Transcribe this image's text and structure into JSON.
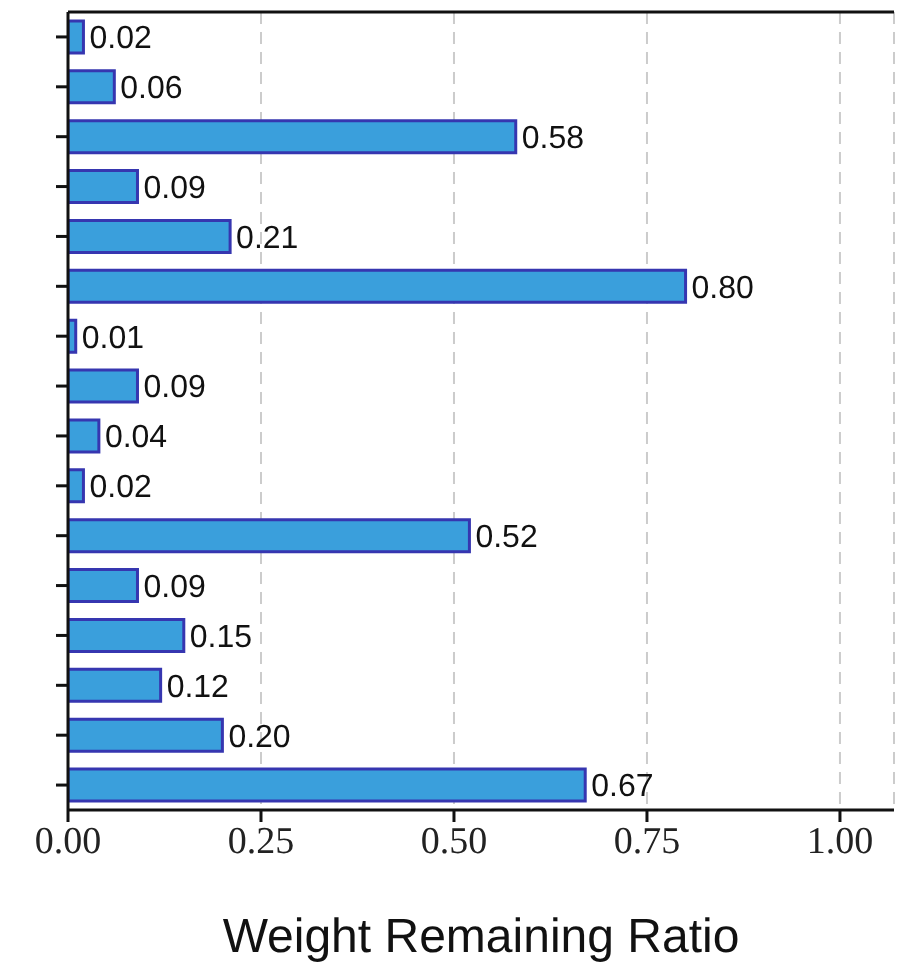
{
  "chart_data": {
    "type": "bar",
    "orientation": "horizontal",
    "xlabel": "Weight Remaining Ratio",
    "categories": [
      null,
      null,
      null,
      null,
      null,
      null,
      null,
      null,
      null,
      null,
      null,
      null,
      null,
      null,
      null,
      null
    ],
    "values": [
      0.02,
      0.06,
      0.58,
      0.09,
      0.21,
      0.8,
      0.01,
      0.09,
      0.04,
      0.02,
      0.52,
      0.09,
      0.15,
      0.12,
      0.2,
      0.67
    ],
    "value_labels": [
      "0.02",
      "0.06",
      "0.58",
      "0.09",
      "0.21",
      "0.80",
      "0.01",
      "0.09",
      "0.04",
      "0.02",
      "0.52",
      "0.09",
      "0.15",
      "0.12",
      "0.20",
      "0.67"
    ],
    "color": "#3a9fdc",
    "xlim": [
      0,
      1.07
    ],
    "xticks": [
      {
        "value": 0,
        "label": "0.00"
      },
      {
        "value": 0.25,
        "label": "0.25"
      },
      {
        "value": 0.5,
        "label": "0.50"
      },
      {
        "value": 0.75,
        "label": "0.75"
      },
      {
        "value": 1,
        "label": "1.00"
      }
    ],
    "grid": "x"
  }
}
